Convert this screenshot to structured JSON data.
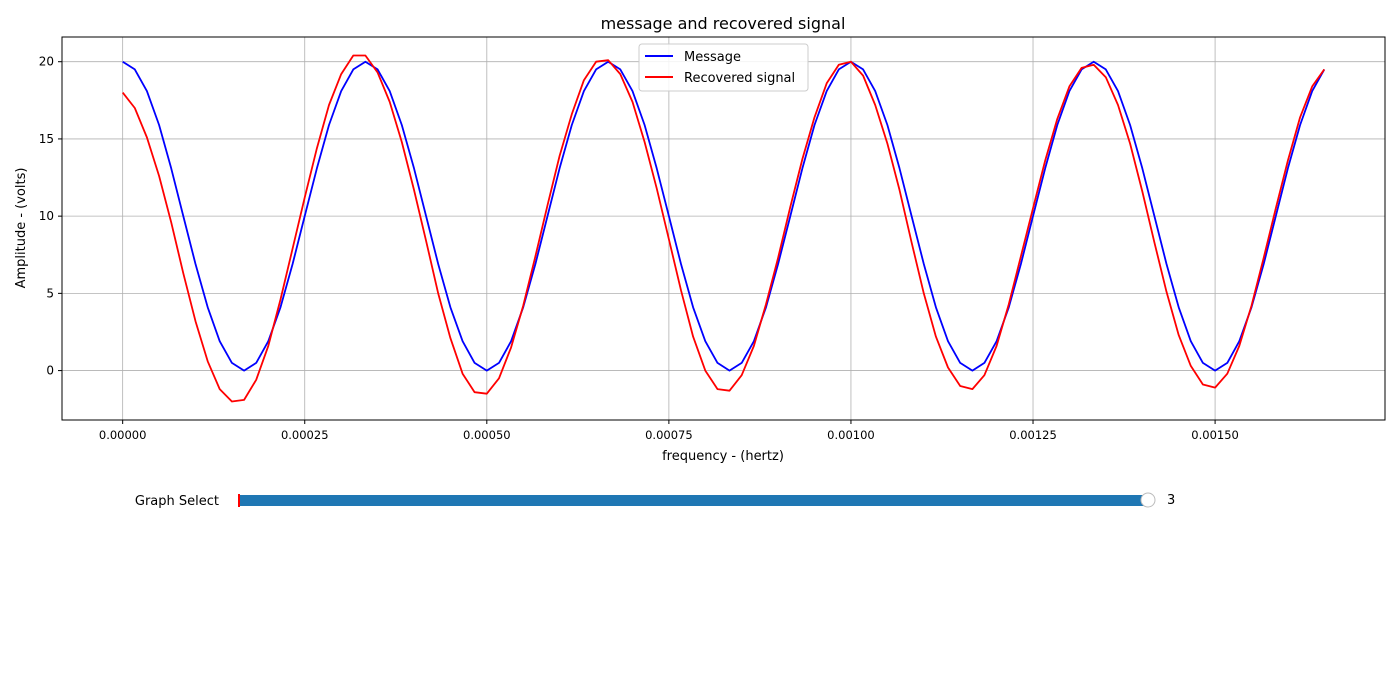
{
  "chart_data": {
    "type": "line",
    "title": "message and recovered signal",
    "xlabel": "frequency - (hertz)",
    "ylabel": "Amplitude - (volts)",
    "xlim": [
      -8.33e-05,
      0.0017333
    ],
    "ylim": [
      -3.2,
      21.6
    ],
    "grid": true,
    "legend_placement": "top-center",
    "x_ticks": [
      "0.00000",
      "0.00025",
      "0.00050",
      "0.00075",
      "0.00100",
      "0.00125",
      "0.00150"
    ],
    "y_ticks": [
      "0",
      "5",
      "10",
      "15",
      "20"
    ],
    "x_tick_values": [
      0,
      0.00025,
      0.0005,
      0.00075,
      0.001,
      0.00125,
      0.0015
    ],
    "y_tick_values": [
      0,
      5,
      10,
      15,
      20
    ],
    "x": [
      0,
      1.67e-05,
      3.33e-05,
      5e-05,
      6.67e-05,
      8.33e-05,
      0.0001,
      0.0001167,
      0.0001333,
      0.00015,
      0.0001667,
      0.0001833,
      0.0002,
      0.0002167,
      0.0002333,
      0.00025,
      0.0002667,
      0.0002833,
      0.0003,
      0.0003167,
      0.0003333,
      0.00035,
      0.0003667,
      0.0003833,
      0.0004,
      0.0004167,
      0.0004333,
      0.00045,
      0.0004667,
      0.0004833,
      0.0005,
      0.0005167,
      0.0005333,
      0.00055,
      0.0005667,
      0.0005833,
      0.0006,
      0.0006167,
      0.0006333,
      0.00065,
      0.0006667,
      0.0006833,
      0.0007,
      0.0007167,
      0.0007333,
      0.00075,
      0.0007667,
      0.0007833,
      0.0008,
      0.0008167,
      0.0008333,
      0.00085,
      0.0008667,
      0.0008833,
      0.0009,
      0.0009167,
      0.0009333,
      0.00095,
      0.0009667,
      0.0009833,
      0.001,
      0.0010167,
      0.0010333,
      0.00105,
      0.0010667,
      0.0010833,
      0.0011,
      0.0011167,
      0.0011333,
      0.00115,
      0.0011667,
      0.0011833,
      0.0012,
      0.0012167,
      0.0012333,
      0.00125,
      0.0012667,
      0.0012833,
      0.0013,
      0.0013167,
      0.0013333,
      0.00135,
      0.0013667,
      0.0013833,
      0.0014,
      0.0014167,
      0.0014333,
      0.00145,
      0.0014667,
      0.0014833,
      0.0015,
      0.0015167,
      0.0015333,
      0.00155,
      0.0015667,
      0.0015833,
      0.0016,
      0.0016167,
      0.0016333,
      0.00165
    ],
    "series": [
      {
        "name": "Message",
        "color": "#0000ff",
        "values": [
          20.0,
          19.5,
          18.1,
          15.9,
          13.1,
          10.0,
          6.9,
          4.1,
          1.9,
          0.5,
          0.0,
          0.5,
          1.9,
          4.1,
          6.9,
          10.0,
          13.1,
          15.9,
          18.1,
          19.5,
          20.0,
          19.5,
          18.1,
          15.9,
          13.1,
          10.0,
          6.9,
          4.1,
          1.9,
          0.5,
          0.0,
          0.5,
          1.9,
          4.1,
          6.9,
          10.0,
          13.1,
          15.9,
          18.1,
          19.5,
          20.0,
          19.5,
          18.1,
          15.9,
          13.1,
          10.0,
          6.9,
          4.1,
          1.9,
          0.5,
          0.0,
          0.5,
          1.9,
          4.1,
          6.9,
          10.0,
          13.1,
          15.9,
          18.1,
          19.5,
          20.0,
          19.5,
          18.1,
          15.9,
          13.1,
          10.0,
          6.9,
          4.1,
          1.9,
          0.5,
          0.0,
          0.5,
          1.9,
          4.1,
          6.9,
          10.0,
          13.1,
          15.9,
          18.1,
          19.5,
          20.0,
          19.5,
          18.1,
          15.9,
          13.1,
          10.0,
          6.9,
          4.1,
          1.9,
          0.5,
          0.0,
          0.5,
          1.9,
          4.1,
          6.9,
          10.0,
          13.1,
          15.9,
          18.1,
          19.5
        ]
      },
      {
        "name": "Recovered signal",
        "color": "#ff0000",
        "values": [
          18.0,
          17.0,
          15.1,
          12.6,
          9.6,
          6.3,
          3.2,
          0.6,
          -1.2,
          -2.0,
          -1.9,
          -0.6,
          1.6,
          4.6,
          7.9,
          11.2,
          14.4,
          17.2,
          19.2,
          20.4,
          20.4,
          19.3,
          17.4,
          14.8,
          11.7,
          8.4,
          5.0,
          2.1,
          -0.2,
          -1.4,
          -1.5,
          -0.5,
          1.5,
          4.2,
          7.4,
          10.7,
          13.9,
          16.6,
          18.8,
          20.0,
          20.1,
          19.2,
          17.4,
          14.8,
          11.8,
          8.5,
          5.2,
          2.2,
          0.0,
          -1.2,
          -1.3,
          -0.3,
          1.6,
          4.3,
          7.3,
          10.6,
          13.7,
          16.4,
          18.6,
          19.8,
          20.0,
          19.1,
          17.2,
          14.7,
          11.7,
          8.3,
          5.0,
          2.2,
          0.2,
          -1.0,
          -1.2,
          -0.3,
          1.6,
          4.3,
          7.4,
          10.5,
          13.6,
          16.3,
          18.4,
          19.6,
          19.8,
          19.0,
          17.2,
          14.7,
          11.6,
          8.3,
          5.1,
          2.3,
          0.3,
          -0.9,
          -1.1,
          -0.2,
          1.6,
          4.2,
          7.3,
          10.5,
          13.6,
          16.4,
          18.4,
          19.5
        ]
      }
    ]
  },
  "slider": {
    "label": "Graph Select",
    "value_text": "3",
    "value": 3,
    "min": 0,
    "max": 3,
    "fill_color": "#1f77b4",
    "marker_color": "#ff0000"
  }
}
